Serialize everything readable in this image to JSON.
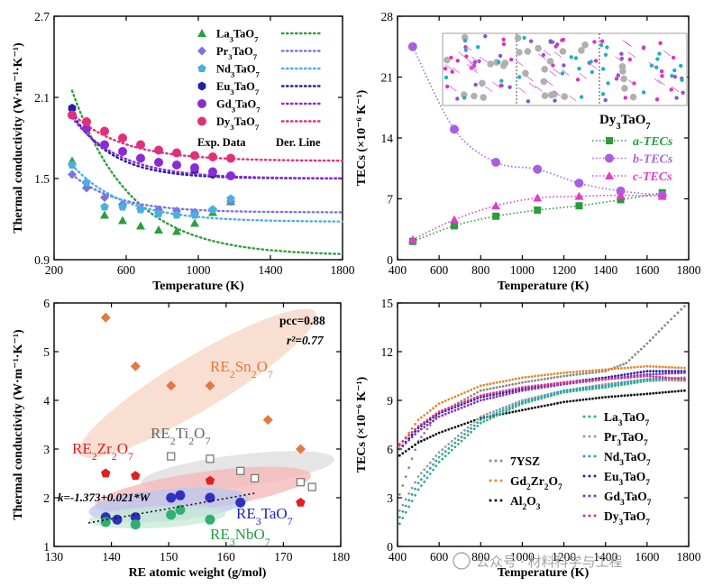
{
  "chart_data": [
    {
      "id": "a",
      "type": "scatter",
      "xlabel": "Temperature (K)",
      "ylabel": "Thermal conductivity (W·m⁻¹·K⁻¹)",
      "xlim": [
        200,
        1800
      ],
      "ylim": [
        0.9,
        2.7
      ],
      "xticks": [
        200,
        600,
        1000,
        1400,
        1800
      ],
      "yticks": [
        0.9,
        1.5,
        2.1,
        2.7
      ],
      "legend_exp": "Exp. Data",
      "legend_der": "Der. Line",
      "series": [
        {
          "name": "La₃TaO₇",
          "color": "#2e9e3e",
          "marker": "triangle",
          "x": [
            300,
            380,
            480,
            580,
            680,
            780,
            880,
            980,
            1080,
            1180
          ],
          "y": [
            1.63,
            1.45,
            1.23,
            1.19,
            1.15,
            1.12,
            1.11,
            1.17,
            1.25,
            1.33
          ],
          "line": {
            "a": 1.22,
            "b": 0.93,
            "c": 0.0031,
            "x0": 300
          }
        },
        {
          "name": "Pr₃TaO₇",
          "color": "#7b74e0",
          "marker": "diamond",
          "x": [
            300,
            380,
            480,
            580,
            680,
            780,
            880,
            980,
            1080,
            1180
          ],
          "y": [
            1.53,
            1.43,
            1.36,
            1.31,
            1.28,
            1.27,
            1.26,
            1.25,
            1.27,
            1.33
          ],
          "line": {
            "a": 0.28,
            "b": 1.25,
            "c": 0.004,
            "x0": 300
          }
        },
        {
          "name": "Nd₃TaO₇",
          "color": "#4ab0e0",
          "marker": "pentagon",
          "x": [
            300,
            380,
            480,
            580,
            680,
            780,
            880,
            980,
            1080,
            1180
          ],
          "y": [
            1.6,
            1.47,
            1.29,
            1.29,
            1.27,
            1.24,
            1.23,
            1.23,
            1.27,
            1.35
          ],
          "line": {
            "a": 0.42,
            "b": 1.18,
            "c": 0.0035,
            "x0": 300
          }
        },
        {
          "name": "Eu₃TaO₇",
          "color": "#1f1fae",
          "marker": "hexagon",
          "x": [
            300,
            380,
            480,
            580,
            680,
            780,
            880,
            980,
            1080,
            1180
          ],
          "y": [
            2.02,
            1.87,
            1.75,
            1.7,
            1.65,
            1.62,
            1.6,
            1.56,
            1.53,
            1.52
          ],
          "line": {
            "a": 0.48,
            "b": 1.5,
            "c": 0.0045,
            "x0": 300
          }
        },
        {
          "name": "Gd₃TaO₇",
          "color": "#8a2bd6",
          "marker": "circle",
          "x": [
            300,
            380,
            480,
            580,
            680,
            780,
            880,
            980,
            1080,
            1180
          ],
          "y": [
            1.97,
            1.87,
            1.75,
            1.7,
            1.65,
            1.62,
            1.6,
            1.58,
            1.55,
            1.52
          ],
          "line": {
            "a": 0.45,
            "b": 1.5,
            "c": 0.0038,
            "x0": 300
          }
        },
        {
          "name": "Dy₃TaO₇",
          "color": "#e0307a",
          "marker": "circle",
          "x": [
            300,
            380,
            480,
            580,
            680,
            780,
            880,
            980,
            1080,
            1180
          ],
          "y": [
            1.97,
            1.92,
            1.85,
            1.8,
            1.75,
            1.71,
            1.69,
            1.67,
            1.66,
            1.65
          ],
          "line": {
            "a": 0.35,
            "b": 1.63,
            "c": 0.0035,
            "x0": 300
          }
        }
      ]
    },
    {
      "id": "b",
      "type": "line",
      "xlabel": "Temperature (K)",
      "ylabel": "TECs (×10⁻⁶ K⁻¹)",
      "xlim": [
        400,
        1800
      ],
      "ylim": [
        0,
        28
      ],
      "xticks": [
        400,
        600,
        800,
        1000,
        1200,
        1400,
        1600,
        1800
      ],
      "yticks": [
        0,
        7,
        14,
        21,
        28
      ],
      "title": "Dy₃TaO₇",
      "series": [
        {
          "name": "a-TECs",
          "color": "#2a9d3a",
          "marker": "square",
          "x": [
            473,
            673,
            873,
            1073,
            1273,
            1473,
            1673
          ],
          "y": [
            2.1,
            3.9,
            5.0,
            5.7,
            6.2,
            6.9,
            7.7
          ]
        },
        {
          "name": "b-TECs",
          "color": "#a860e0",
          "marker": "circle",
          "x": [
            473,
            673,
            873,
            1073,
            1273,
            1473,
            1673
          ],
          "y": [
            24.5,
            15.0,
            11.2,
            10.4,
            8.8,
            7.9,
            7.4
          ]
        },
        {
          "name": "c-TECs",
          "color": "#e040c8",
          "marker": "triangle",
          "x": [
            473,
            673,
            873,
            1073,
            1273,
            1473,
            1673
          ],
          "y": [
            2.3,
            4.6,
            6.2,
            7.1,
            7.3,
            7.4,
            7.3
          ]
        }
      ]
    },
    {
      "id": "c",
      "type": "scatter",
      "xlabel": "RE atomic weight (g/mol)",
      "ylabel": "Thermal conductivity (W·m⁻¹·K⁻¹)",
      "xlim": [
        130,
        180
      ],
      "ylim": [
        1,
        6
      ],
      "xticks": [
        130,
        140,
        150,
        160,
        170,
        180
      ],
      "yticks": [
        1,
        2,
        3,
        4,
        5,
        6
      ],
      "pcc": "pcc=0.88",
      "r2": "r²=0.77",
      "fit_equation": "k=-1.373+0.021*W",
      "fit": {
        "a": -1.373,
        "b": 0.021
      },
      "groups": [
        {
          "name": "RE₂Sn₂O₇",
          "color": "#e07a40",
          "x": [
            139,
            144.2,
            150.4,
            157.2,
            167.3,
            173
          ],
          "y": [
            5.7,
            4.7,
            4.3,
            4.3,
            3.6,
            3.0
          ]
        },
        {
          "name": "RE₂Ti₂O₇",
          "color": "#7a7a7a",
          "x": [
            150.4,
            157.2,
            162.5,
            165,
            173,
            175
          ],
          "y": [
            2.85,
            2.8,
            2.55,
            2.4,
            2.32,
            2.22
          ]
        },
        {
          "name": "RE₂Zr₂O₇",
          "color": "#e02020",
          "x": [
            139,
            144.2,
            150.4,
            157.2,
            173
          ],
          "y": [
            2.5,
            2.45,
            2.0,
            2.35,
            1.9
          ]
        },
        {
          "name": "RE₃TaO₇",
          "color": "#3030c0",
          "x": [
            139,
            141,
            144.2,
            150.4,
            152,
            157.2,
            162.5
          ],
          "y": [
            1.6,
            1.55,
            1.6,
            2.0,
            2.05,
            2.0,
            1.9
          ]
        },
        {
          "name": "RE₃NbO₇",
          "color": "#30b070",
          "x": [
            139,
            144.2,
            150.4,
            152,
            157.2
          ],
          "y": [
            1.5,
            1.45,
            1.65,
            1.75,
            1.55
          ]
        }
      ]
    },
    {
      "id": "d",
      "type": "scatter",
      "xlabel": "Temperature (K)",
      "ylabel": "TECs (×10⁻⁶ K⁻¹)",
      "xlim": [
        400,
        1800
      ],
      "ylim": [
        0,
        15
      ],
      "xticks": [
        400,
        600,
        800,
        1000,
        1200,
        1400,
        1600,
        1800
      ],
      "yticks": [
        0,
        3,
        6,
        9,
        12,
        15
      ],
      "series": [
        {
          "name": "7YSZ",
          "color": "#8a8a8a",
          "points": [
            [
              410,
              3.2
            ],
            [
              500,
              6.5
            ],
            [
              600,
              8.2
            ],
            [
              800,
              9.6
            ],
            [
              1000,
              10.1
            ],
            [
              1200,
              10.5
            ],
            [
              1400,
              10.8
            ],
            [
              1500,
              11.3
            ],
            [
              1600,
              12.5
            ],
            [
              1700,
              13.8
            ],
            [
              1780,
              14.8
            ]
          ]
        },
        {
          "name": "Gd₂Zr₂O₇",
          "color": "#e08a30",
          "points": [
            [
              410,
              6.2
            ],
            [
              500,
              7.8
            ],
            [
              600,
              8.8
            ],
            [
              800,
              9.9
            ],
            [
              1000,
              10.4
            ],
            [
              1200,
              10.7
            ],
            [
              1400,
              10.9
            ],
            [
              1600,
              11.1
            ],
            [
              1780,
              11.0
            ]
          ]
        },
        {
          "name": "Al₂O₃",
          "color": "#111111",
          "points": [
            [
              410,
              5.6
            ],
            [
              500,
              6.4
            ],
            [
              600,
              7.0
            ],
            [
              800,
              7.9
            ],
            [
              1000,
              8.4
            ],
            [
              1200,
              8.9
            ],
            [
              1400,
              9.2
            ],
            [
              1600,
              9.4
            ],
            [
              1780,
              9.6
            ]
          ]
        },
        {
          "name": "La₃TaO₇",
          "color": "#30b070",
          "points": [
            [
              410,
              1.4
            ],
            [
              500,
              3.5
            ],
            [
              600,
              5.2
            ],
            [
              800,
              7.6
            ],
            [
              1000,
              8.8
            ],
            [
              1200,
              9.5
            ],
            [
              1400,
              9.8
            ],
            [
              1600,
              10.2
            ],
            [
              1780,
              10.3
            ]
          ]
        },
        {
          "name": "Pr₃TaO₇",
          "color": "#9a9a9a",
          "points": [
            [
              410,
              2.2
            ],
            [
              500,
              4.3
            ],
            [
              600,
              5.8
            ],
            [
              800,
              8.0
            ],
            [
              1000,
              9.0
            ],
            [
              1200,
              9.6
            ],
            [
              1400,
              10.0
            ],
            [
              1600,
              10.3
            ],
            [
              1780,
              10.2
            ]
          ]
        },
        {
          "name": "Nd₃TaO₇",
          "color": "#30a0c0",
          "points": [
            [
              410,
              1.8
            ],
            [
              500,
              3.9
            ],
            [
              600,
              5.5
            ],
            [
              800,
              7.8
            ],
            [
              1000,
              8.9
            ],
            [
              1200,
              9.6
            ],
            [
              1400,
              9.9
            ],
            [
              1600,
              10.3
            ],
            [
              1780,
              10.4
            ]
          ]
        },
        {
          "name": "Eu₃TaO₇",
          "color": "#2020b0",
          "points": [
            [
              410,
              6.0
            ],
            [
              500,
              7.3
            ],
            [
              600,
              8.2
            ],
            [
              800,
              9.2
            ],
            [
              1000,
              9.7
            ],
            [
              1200,
              10.1
            ],
            [
              1400,
              10.4
            ],
            [
              1600,
              10.8
            ],
            [
              1780,
              10.8
            ]
          ]
        },
        {
          "name": "Gd₃TaO₇",
          "color": "#8030d0",
          "points": [
            [
              410,
              6.0
            ],
            [
              500,
              7.1
            ],
            [
              600,
              8.0
            ],
            [
              800,
              9.0
            ],
            [
              1000,
              9.6
            ],
            [
              1200,
              10.0
            ],
            [
              1400,
              10.3
            ],
            [
              1600,
              10.6
            ],
            [
              1780,
              10.7
            ]
          ]
        },
        {
          "name": "Dy₃TaO₇",
          "color": "#e03080",
          "points": [
            [
              410,
              6.3
            ],
            [
              500,
              7.4
            ],
            [
              600,
              8.3
            ],
            [
              800,
              9.3
            ],
            [
              1000,
              9.8
            ],
            [
              1200,
              10.1
            ],
            [
              1400,
              10.3
            ],
            [
              1600,
              10.5
            ],
            [
              1780,
              10.3
            ]
          ]
        }
      ]
    }
  ],
  "watermark": "公众号 · 材料科学与工程"
}
